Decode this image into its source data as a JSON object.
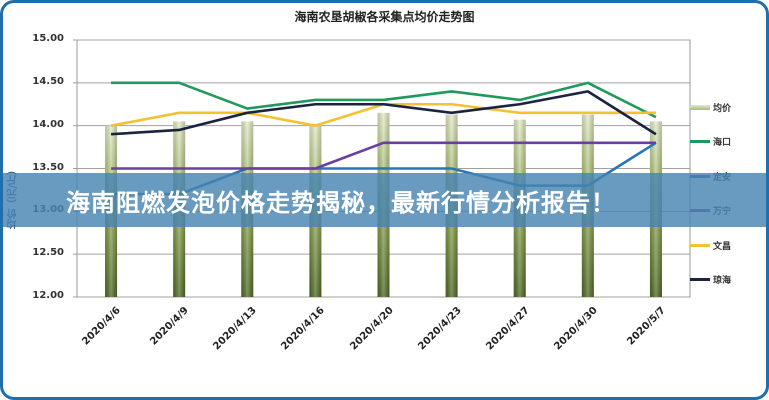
{
  "chart_data": {
    "type": "line",
    "title": "海南农垦胡椒各采集点均价走势图",
    "xlabel": "",
    "ylabel": "均价（元/斤）",
    "ylim": [
      12.0,
      15.0
    ],
    "yticks": [
      "15.00",
      "14.50",
      "14.00",
      "13.50",
      "13.00",
      "12.50",
      "12.00"
    ],
    "grid": true,
    "legend_position": "right",
    "categories": [
      "2020/4/6",
      "2020/4/9",
      "2020/4/13",
      "2020/4/16",
      "2020/4/20",
      "2020/4/23",
      "2020/4/27",
      "2020/4/30",
      "2020/5/7"
    ],
    "series": [
      {
        "name": "均价",
        "kind": "bar",
        "color": "#8ea64e",
        "values": [
          14.0,
          14.05,
          14.05,
          14.0,
          14.15,
          14.13,
          14.07,
          14.13,
          14.05
        ]
      },
      {
        "name": "海口",
        "kind": "line",
        "color": "#1f9a5c",
        "values": [
          14.5,
          14.5,
          14.2,
          14.3,
          14.3,
          14.4,
          14.3,
          14.5,
          14.1
        ]
      },
      {
        "name": "定安",
        "kind": "line",
        "color": "#2677b8",
        "values": [
          13.2,
          13.2,
          13.5,
          13.5,
          13.5,
          13.5,
          13.3,
          13.3,
          13.8
        ]
      },
      {
        "name": "万宁",
        "kind": "line",
        "color": "#6b3fa0",
        "values": [
          13.5,
          13.5,
          13.5,
          13.5,
          13.8,
          13.8,
          13.8,
          13.8,
          13.8
        ]
      },
      {
        "name": "文昌",
        "kind": "line",
        "color": "#f2c230",
        "values": [
          14.0,
          14.15,
          14.15,
          14.0,
          14.25,
          14.25,
          14.15,
          14.15,
          14.15
        ]
      },
      {
        "name": "琼海",
        "kind": "line",
        "color": "#1a2440",
        "values": [
          13.9,
          13.95,
          14.15,
          14.25,
          14.25,
          14.15,
          14.25,
          14.4,
          13.9
        ]
      }
    ]
  },
  "banner": {
    "text": "海南阻燃发泡价格走势揭秘，最新行情分析报告！"
  },
  "colors": {
    "frame": "#1f6fad",
    "banner_bg": "#4884b1"
  }
}
